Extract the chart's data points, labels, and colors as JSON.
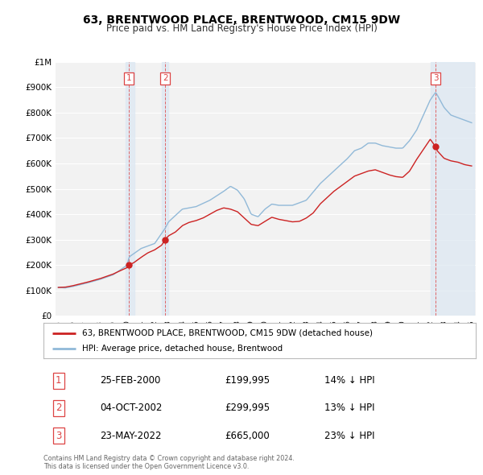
{
  "title": "63, BRENTWOOD PLACE, BRENTWOOD, CM15 9DW",
  "subtitle": "Price paid vs. HM Land Registry's House Price Index (HPI)",
  "ylim": [
    0,
    1000000
  ],
  "yticks": [
    0,
    100000,
    200000,
    300000,
    400000,
    500000,
    600000,
    700000,
    800000,
    900000,
    1000000
  ],
  "ytick_labels": [
    "£0",
    "£100K",
    "£200K",
    "£300K",
    "£400K",
    "£500K",
    "£600K",
    "£700K",
    "£800K",
    "£900K",
    "£1M"
  ],
  "background_color": "#ffffff",
  "plot_bg_color": "#f2f2f2",
  "grid_color": "#ffffff",
  "hpi_color": "#91b9d8",
  "hpi_fill_color": "#c5d9ea",
  "price_color": "#cc2222",
  "vline_color": "#dd4444",
  "transactions": [
    {
      "label": "1",
      "date_num": 2000.14,
      "price": 199995,
      "hpi_pct": 14,
      "date_str": "25-FEB-2000",
      "price_str": "£199,995",
      "shade_start": 1999.9,
      "shade_end": 2000.5
    },
    {
      "label": "2",
      "date_num": 2002.76,
      "price": 299995,
      "hpi_pct": 13,
      "date_str": "04-OCT-2002",
      "price_str": "£299,995",
      "shade_start": 2002.5,
      "shade_end": 2003.0
    },
    {
      "label": "3",
      "date_num": 2022.39,
      "price": 665000,
      "hpi_pct": 23,
      "date_str": "23-MAY-2022",
      "price_str": "£665,000",
      "shade_start": 2022.0,
      "shade_end": 2025.2
    }
  ],
  "legend_property_label": "63, BRENTWOOD PLACE, BRENTWOOD, CM15 9DW (detached house)",
  "legend_hpi_label": "HPI: Average price, detached house, Brentwood",
  "footnote": "Contains HM Land Registry data © Crown copyright and database right 2024.\nThis data is licensed under the Open Government Licence v3.0.",
  "xlim_left": 1994.8,
  "xlim_right": 2025.3
}
